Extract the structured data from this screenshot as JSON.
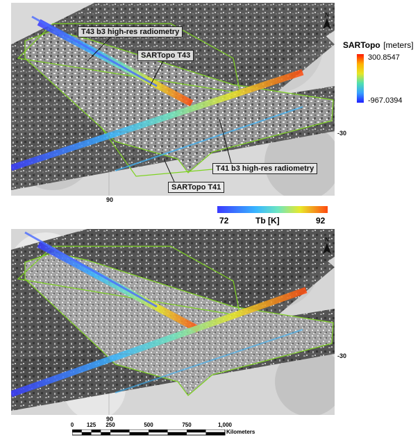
{
  "north_label": "N",
  "top_panel": {
    "callouts": {
      "t43_radiometry": "T43 b3 high-res radiometry",
      "sartopo_t43": "SARTopo T43",
      "t41_radiometry": "T41 b3 high-res radiometry",
      "sartopo_t41": "SARTopo T41"
    },
    "lat_label": "-30",
    "lon_label": "90"
  },
  "bottom_panel": {
    "lat_label": "-30",
    "lon_label": "90"
  },
  "sartopo_legend": {
    "title": "SARTopo",
    "unit": "[meters]",
    "max": "300.8547",
    "min": "-967.0394"
  },
  "tb_colorbar": {
    "label": "Tb [K]",
    "min": "72",
    "max": "92"
  },
  "scale_bar": {
    "ticks": [
      "0",
      "125",
      "250",
      "500",
      "750",
      "1,000"
    ],
    "unit": "Kilometers"
  },
  "colors": {
    "swath_outline": "#7ed321",
    "radiometry_ramp": [
      "#2b2bff",
      "#39b6ff",
      "#5fe0c8",
      "#e6e626",
      "#ff7a1a",
      "#ff2a00"
    ]
  }
}
